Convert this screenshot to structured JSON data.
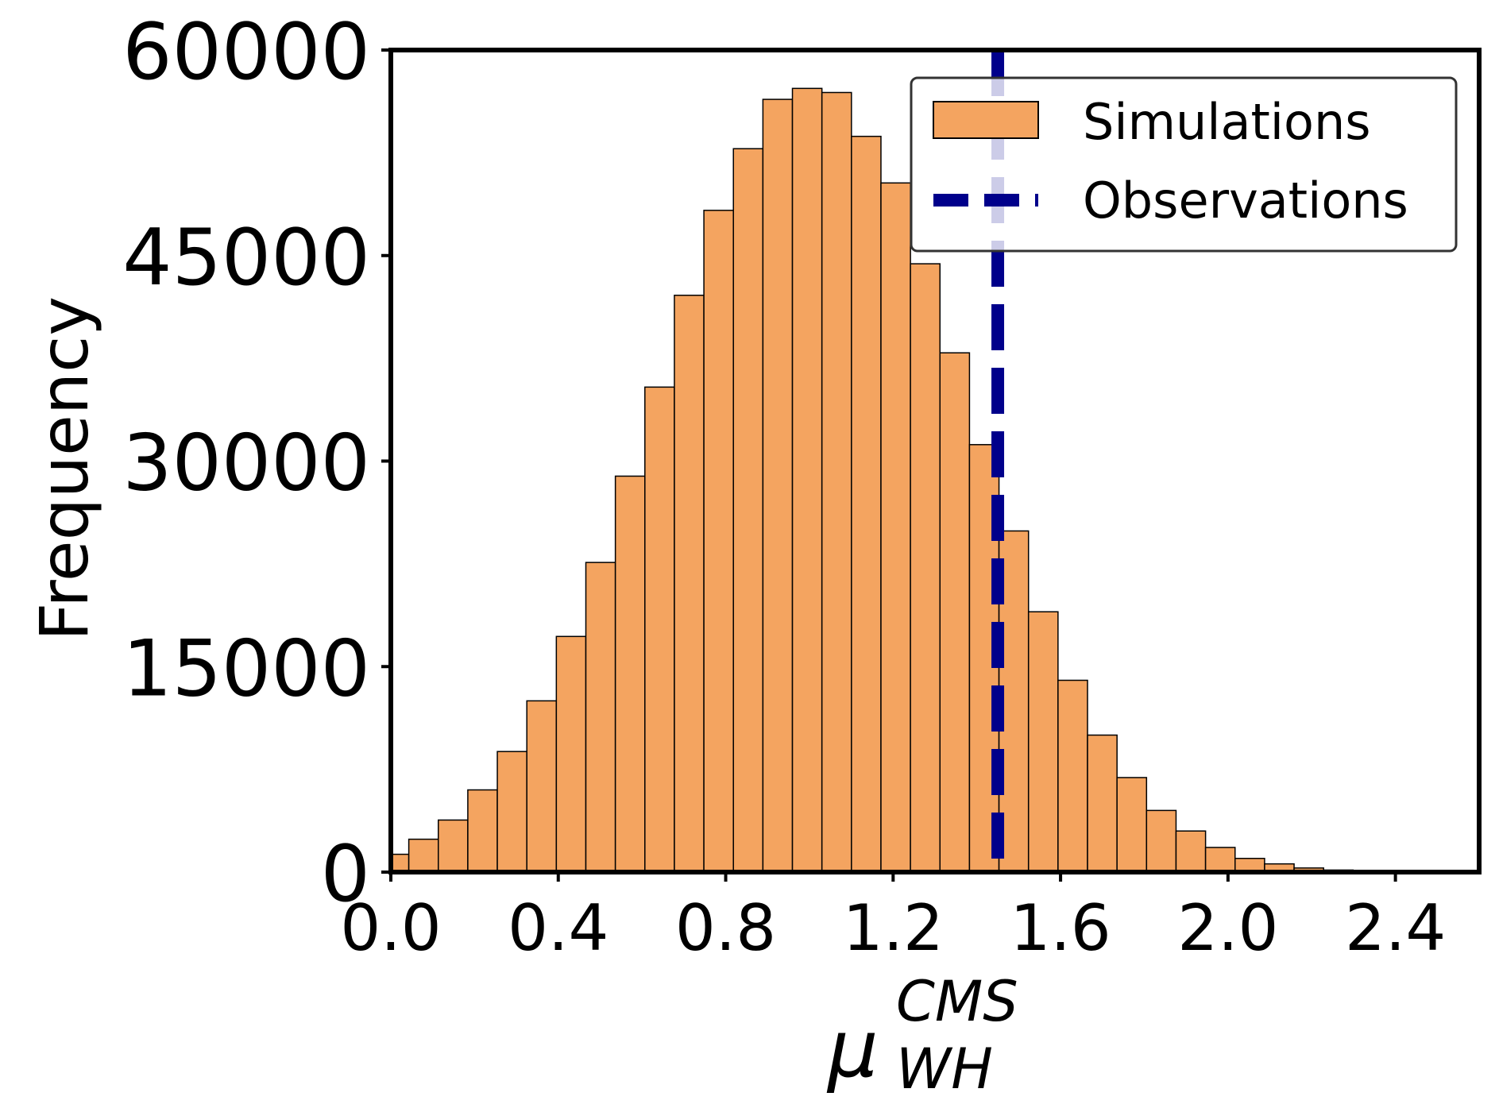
{
  "chart_data": {
    "type": "bar",
    "title": "",
    "xlabel": "μ",
    "xlabel_superscript": "CMS",
    "xlabel_subscript": "WH",
    "ylabel": "Frequency",
    "xlim": [
      0.0,
      2.6
    ],
    "ylim": [
      0,
      60000
    ],
    "xticks": [
      "0.0",
      "0.4",
      "0.8",
      "1.2",
      "1.6",
      "2.0",
      "2.4"
    ],
    "xtick_values": [
      0.0,
      0.4,
      0.8,
      1.2,
      1.6,
      2.0,
      2.4
    ],
    "yticks": [
      "0",
      "15000",
      "30000",
      "45000",
      "60000"
    ],
    "ytick_values": [
      0,
      15000,
      30000,
      45000,
      60000
    ],
    "bin_start": -0.0276,
    "bin_width": 0.0705,
    "values": [
      1300,
      2400,
      3800,
      6000,
      8800,
      12500,
      17200,
      22600,
      28900,
      35400,
      42100,
      48300,
      52800,
      56400,
      57200,
      56900,
      53700,
      50300,
      44400,
      37900,
      31200,
      24900,
      19000,
      14000,
      10000,
      6900,
      4500,
      3000,
      1800,
      1000,
      600,
      300,
      150,
      70,
      30
    ],
    "observation": 1.45,
    "bar_color": "#F4A460",
    "bar_edge_color": "#000000",
    "observation_color": "#00008B",
    "legend": {
      "position": "top-right",
      "entries": [
        {
          "label": "Simulations",
          "kind": "bar"
        },
        {
          "label": "Observations",
          "kind": "dashed-line"
        }
      ]
    }
  }
}
